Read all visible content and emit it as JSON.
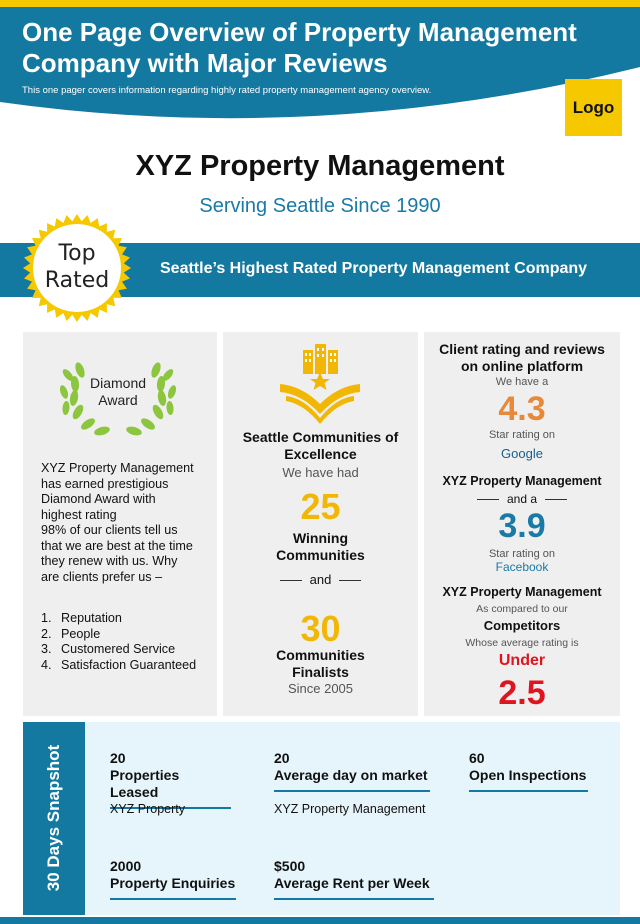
{
  "header": {
    "title": "One Page Overview of Property Management Company with Major Reviews",
    "subtitle": "This one pager covers information regarding highly rated property management agency overview.",
    "logo_label": "Logo"
  },
  "company": {
    "name": "XYZ Property Management",
    "tagline": "Serving Seattle Since 1990"
  },
  "banner": {
    "badge_line1": "Top",
    "badge_line2": "Rated",
    "text": "Seattle’s Highest Rated Property Management Company"
  },
  "award_panel": {
    "award_line1": "Diamond",
    "award_line2": "Award",
    "description_lines": [
      "XYZ  Property Management",
      "has earned prestigious",
      "Diamond Award with",
      "highest rating",
      "98% of our clients tell us",
      "that we are best at the time",
      "they renew with us. Why",
      "are clients prefer us –"
    ],
    "reasons": [
      {
        "num": "1.",
        "text": "Reputation"
      },
      {
        "num": "2.",
        "text": "People"
      },
      {
        "num": "3.",
        "text": "Customered Service"
      },
      {
        "num": "4.",
        "text": "Satisfaction Guaranteed"
      }
    ]
  },
  "communities_panel": {
    "title_line1": "Seattle Communities of",
    "title_line2": "Excellence",
    "intro": "We have had",
    "winning_count": "25",
    "winning_line1": "Winning",
    "winning_line2": "Communities",
    "connector": "and",
    "finalist_count": "30",
    "finalist_line1": "Communities",
    "finalist_line2": "Finalists",
    "since": "Since 2005"
  },
  "ratings_panel": {
    "title_line1": "Client rating and reviews",
    "title_line2": "on online platform",
    "we_have": "We have a",
    "google_rating": "4.3",
    "star_rating_on_1": "Star rating on",
    "google": "Google",
    "company_1": "XYZ Property Management",
    "and_a": "and a",
    "facebook_rating": "3.9",
    "star_rating_on_2": "Star rating on",
    "facebook": "Facebook",
    "company_2": "XYZ Property Management",
    "compared": "As compared to our",
    "competitors": "Competitors",
    "whose_avg": "Whose average rating is",
    "under": "Under",
    "competitor_rating": "2.5"
  },
  "snapshot": {
    "side_title": "30 Days Snapshot",
    "metrics": [
      {
        "value": "20",
        "label": "Properties Leased",
        "sub": "XYZ  Property"
      },
      {
        "value": "20",
        "label": "Average day on market",
        "sub": "XYZ  Property Management"
      },
      {
        "value": "60",
        "label": "Open Inspections",
        "sub": ""
      },
      {
        "value": "2000",
        "label": "Property Enquiries",
        "sub": ""
      },
      {
        "value": "$500",
        "label": "Average Rent per Week",
        "sub": ""
      }
    ]
  },
  "colors": {
    "primary_blue": "#1479a0",
    "accent_yellow": "#f5c800",
    "orange": "#e8893a",
    "teal_number": "#1a7aa6",
    "red": "#e0141e"
  },
  "icons": [
    "laurel-wreath-icon",
    "buildings-book-icon",
    "sunburst-badge-icon"
  ]
}
